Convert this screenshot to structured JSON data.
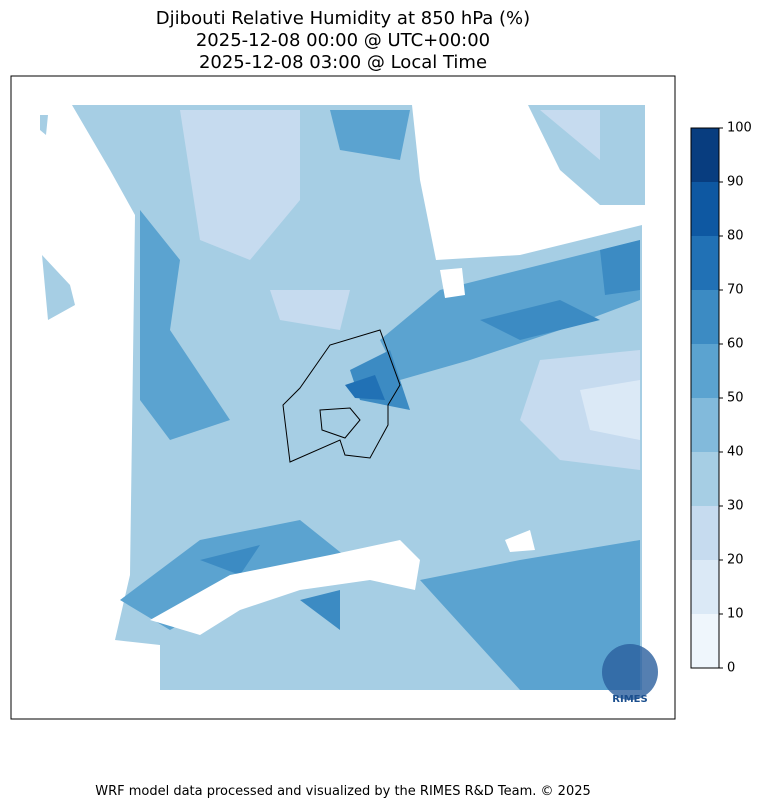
{
  "title": [
    "Djibouti Relative Humidity at 850 hPa (%)",
    "2025-12-08 00:00 @ UTC+00:00",
    "2025-12-08 03:00 @ Local Time"
  ],
  "colorbar": {
    "ticks": [
      0,
      10,
      20,
      30,
      40,
      50,
      60,
      70,
      80,
      90,
      100
    ],
    "colors": [
      "#eff6fc",
      "#dbe9f6",
      "#c6dbef",
      "#a6cee4",
      "#82badb",
      "#5ba3d0",
      "#3c8bc3",
      "#2171b5",
      "#0e58a2",
      "#083d7f"
    ]
  },
  "logo": "RIMES",
  "footer": "WRF model data processed and visualized by the RIMES R&D Team. © 2025"
}
